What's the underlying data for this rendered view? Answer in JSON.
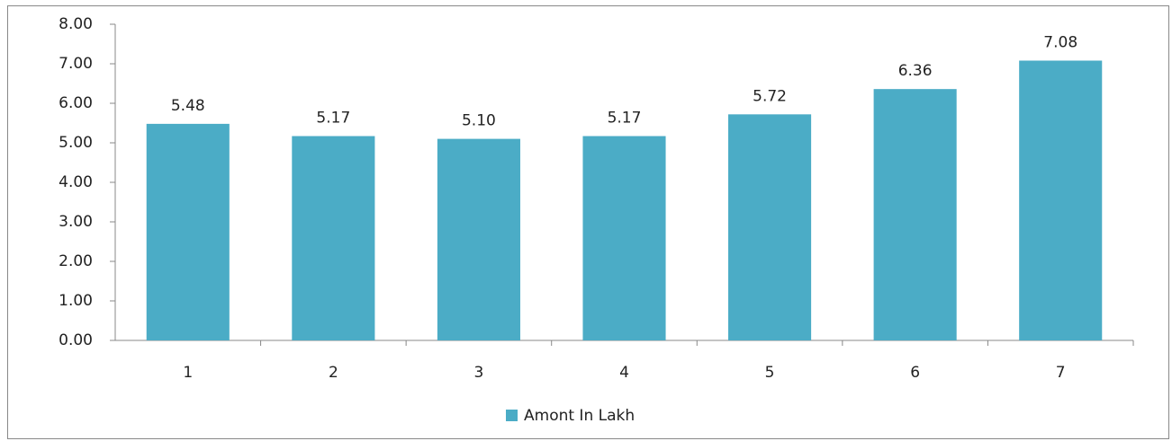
{
  "chart_data": {
    "type": "bar",
    "categories": [
      "1",
      "2",
      "3",
      "4",
      "5",
      "6",
      "7"
    ],
    "series": [
      {
        "name": "Amont In Lakh",
        "color": "#4bacc6",
        "values": [
          5.48,
          5.17,
          5.1,
          5.17,
          5.72,
          6.36,
          7.08
        ],
        "value_labels": [
          "5.48",
          "5.17",
          "5.10",
          "5.17",
          "5.72",
          "6.36",
          "7.08"
        ]
      }
    ],
    "ylim": [
      0,
      8
    ],
    "yticks": [
      {
        "value": 0,
        "label": "0.00"
      },
      {
        "value": 1,
        "label": "1.00"
      },
      {
        "value": 2,
        "label": "2.00"
      },
      {
        "value": 3,
        "label": "3.00"
      },
      {
        "value": 4,
        "label": "4.00"
      },
      {
        "value": 5,
        "label": "5.00"
      },
      {
        "value": 6,
        "label": "6.00"
      },
      {
        "value": 7,
        "label": "7.00"
      },
      {
        "value": 8,
        "label": "8.00"
      }
    ],
    "legend": "bottom",
    "grid": false
  }
}
